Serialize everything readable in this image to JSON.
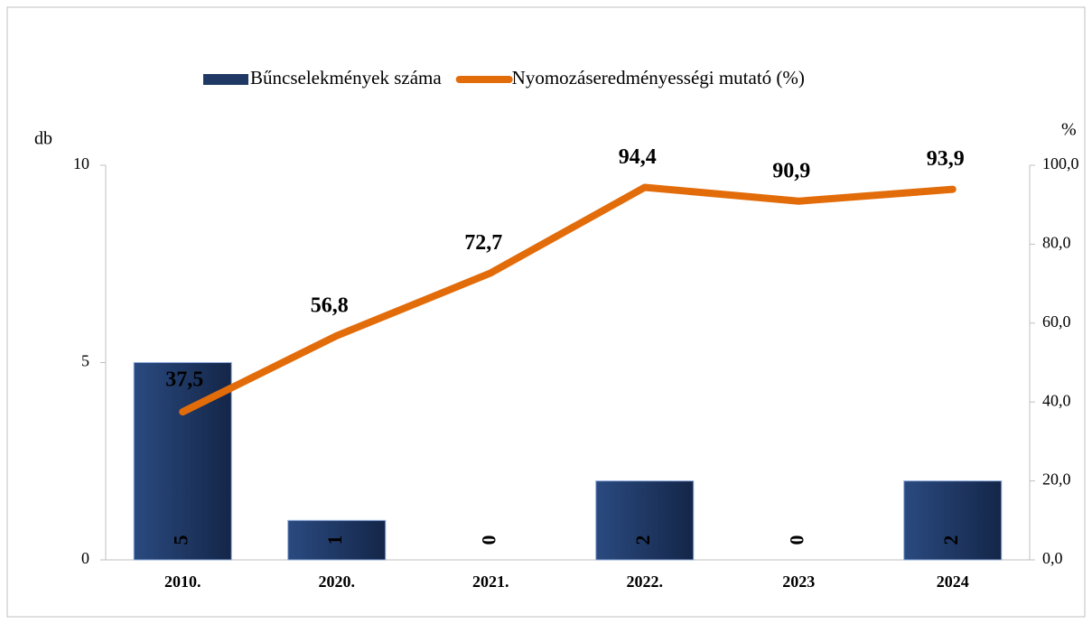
{
  "chart_data": {
    "type": "bar-line",
    "y_label": "db",
    "y2_label": "%",
    "categories": [
      "2010.",
      "2020.",
      "2021.",
      "2022.",
      "2023",
      "2024"
    ],
    "series": [
      {
        "name": "Bűncselekmények száma",
        "type": "bar",
        "color": "#1f3864",
        "values": [
          5,
          1,
          0,
          2,
          0,
          2
        ]
      },
      {
        "name": "Nyomozáseredményességi mutató (%)",
        "type": "line",
        "color": "#e36c0a",
        "axis": "y2",
        "values": [
          37.5,
          56.8,
          72.7,
          94.4,
          90.9,
          93.9
        ],
        "value_labels": [
          "37,5",
          "56,8",
          "72,7",
          "94,4",
          "90,9",
          "93,9"
        ]
      }
    ],
    "ylim": [
      0,
      10
    ],
    "yticks": [
      0,
      5,
      10
    ],
    "y2lim": [
      0,
      100
    ],
    "y2ticks": [
      {
        "value": 0,
        "label": "0,0"
      },
      {
        "value": 20,
        "label": "20,0"
      },
      {
        "value": 40,
        "label": "40,0"
      },
      {
        "value": 60,
        "label": "60,0"
      },
      {
        "value": 80,
        "label": "80,0"
      },
      {
        "value": 100,
        "label": "100,0"
      }
    ],
    "legend": "top"
  }
}
